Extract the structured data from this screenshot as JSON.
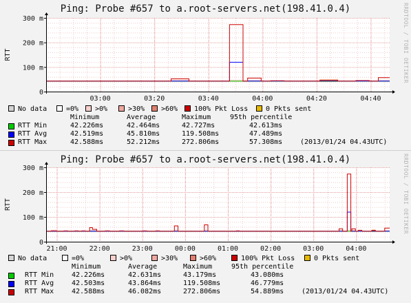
{
  "watermark": "RRDTOOL / TOBI OETIKER",
  "colors": {
    "nodata": "#d4d4d4",
    "p0": "#ffffff",
    "p1": "#f8d0cc",
    "p2": "#f0a8a0",
    "p3": "#e08070",
    "loss": "#cc0000",
    "sent0": "#e6b800",
    "rtt_min": "#00cc00",
    "rtt_avg": "#0000ff",
    "rtt_max": "#cc0000"
  },
  "panels": [
    {
      "title": "Ping: Probe #657 to a.root-servers.net(198.41.0.4)",
      "ylabel": "RTT",
      "legend": [
        {
          "label": "No data",
          "color": "#d4d4d4"
        },
        {
          "label": "=0%",
          "color": "#ffffff"
        },
        {
          "label": ">0%",
          "color": "#f8d0cc"
        },
        {
          "label": ">30%",
          "color": "#f0a8a0"
        },
        {
          "label": ">60%",
          "color": "#e08070"
        },
        {
          "label": "100% Pkt Loss",
          "color": "#cc0000"
        },
        {
          "label": "0 Pkts sent",
          "color": "#e6b800"
        }
      ],
      "stats_header": [
        "Minimum",
        "Average",
        "Maximum",
        "95th percentile"
      ],
      "stats": [
        {
          "name": "RTT Min",
          "color": "#00cc00",
          "min": "42.226ms",
          "avg": "42.464ms",
          "max": "42.727ms",
          "p95": "42.613ms",
          "note": ""
        },
        {
          "name": "RTT Avg",
          "color": "#0000ff",
          "min": "42.519ms",
          "avg": "45.810ms",
          "max": "119.508ms",
          "p95": "47.489ms",
          "note": ""
        },
        {
          "name": "RTT Max",
          "color": "#cc0000",
          "min": "42.588ms",
          "avg": "52.212ms",
          "max": "272.806ms",
          "p95": "57.308ms",
          "note": "(2013/01/24 04.43UTC)"
        }
      ]
    },
    {
      "title": "Ping: Probe #657 to a.root-servers.net(198.41.0.4)",
      "ylabel": "RTT",
      "legend": [
        {
          "label": "No data",
          "color": "#d4d4d4"
        },
        {
          "label": "=0%",
          "color": "#ffffff"
        },
        {
          "label": ">0%",
          "color": "#f8d0cc"
        },
        {
          "label": ">30%",
          "color": "#f0a8a0"
        },
        {
          "label": ">60%",
          "color": "#e08070"
        },
        {
          "label": "100% Pkt Loss",
          "color": "#cc0000"
        },
        {
          "label": "0 Pkts sent",
          "color": "#e6b800"
        }
      ],
      "stats_header": [
        "Minimum",
        "Average",
        "Maximum",
        "95th percentile"
      ],
      "stats": [
        {
          "name": "RTT Min",
          "color": "#00cc00",
          "min": "42.226ms",
          "avg": "42.631ms",
          "max": "43.179ms",
          "p95": "43.080ms",
          "note": ""
        },
        {
          "name": "RTT Avg",
          "color": "#0000ff",
          "min": "42.503ms",
          "avg": "43.864ms",
          "max": "119.508ms",
          "p95": "46.779ms",
          "note": ""
        },
        {
          "name": "RTT Max",
          "color": "#cc0000",
          "min": "42.588ms",
          "avg": "46.082ms",
          "max": "272.806ms",
          "p95": "54.889ms",
          "note": "(2013/01/24 04.43UTC)"
        }
      ]
    }
  ],
  "chart_data": [
    {
      "type": "line",
      "title": "Ping: Probe #657 to a.root-servers.net(198.41.0.4)",
      "ylabel": "RTT",
      "xlabel": "",
      "x_range_min": [
        160,
        287
      ],
      "ylim": [
        0,
        300
      ],
      "yticks": [
        0,
        100,
        200,
        300
      ],
      "ytick_labels": [
        "0",
        "100 m",
        "200 m",
        "300 m"
      ],
      "xticks": [
        180,
        200,
        220,
        240,
        260,
        280
      ],
      "xtick_labels": [
        "03:00",
        "03:20",
        "03:40",
        "04:00",
        "04:20",
        "04:40"
      ],
      "grid": true,
      "step_min": 1.67,
      "baseline_ms": 42.5,
      "series": [
        {
          "name": "RTT Min",
          "color": "#00cc00",
          "points": [
            [
              160,
              42.3
            ],
            [
              287,
              42.3
            ]
          ]
        },
        {
          "name": "RTT Avg",
          "color": "#0000ff",
          "points": [
            [
              160,
              42.5
            ],
            [
              227.8,
              42.5
            ],
            [
              227.8,
              119.5
            ],
            [
              232.8,
              119.5
            ],
            [
              232.8,
              42.5
            ],
            [
              287,
              42.5
            ]
          ]
        },
        {
          "name": "RTT Max",
          "color": "#cc0000",
          "points": [
            [
              160,
              42.6
            ],
            [
              206.2,
              42.6
            ],
            [
              206.2,
              52
            ],
            [
              212.8,
              52
            ],
            [
              212.8,
              42.6
            ],
            [
              227.8,
              42.6
            ],
            [
              227.8,
              272.8
            ],
            [
              232.8,
              272.8
            ],
            [
              232.8,
              42.6
            ],
            [
              234.5,
              42.6
            ],
            [
              234.5,
              55
            ],
            [
              239.5,
              55
            ],
            [
              239.5,
              42.6
            ],
            [
              243,
              42.6
            ],
            [
              243,
              44
            ],
            [
              248,
              44
            ],
            [
              248,
              42.6
            ],
            [
              261.2,
              42.6
            ],
            [
              261.2,
              47
            ],
            [
              267.8,
              47
            ],
            [
              267.8,
              42.6
            ],
            [
              274.5,
              42.6
            ],
            [
              274.5,
              45
            ],
            [
              279.5,
              45
            ],
            [
              279.5,
              42.6
            ],
            [
              282.8,
              42.6
            ],
            [
              282.8,
              57
            ],
            [
              287,
              57
            ]
          ]
        }
      ],
      "loss_markers": [
        [
          206.2,
          212.8,
          "#f8d0cc"
        ],
        [
          227.8,
          232.8,
          "#f8d0cc"
        ],
        [
          234.5,
          239.5,
          "#f8d0cc"
        ],
        [
          261.2,
          267.8,
          "#e6b800"
        ],
        [
          282.8,
          287,
          "#f8d0cc"
        ]
      ]
    },
    {
      "type": "line",
      "title": "Ping: Probe #657 to a.root-servers.net(198.41.0.4)",
      "ylabel": "RTT",
      "xlabel": "",
      "x_range_min": [
        -195,
        287
      ],
      "ylim": [
        0,
        300
      ],
      "yticks": [
        0,
        100,
        200,
        300
      ],
      "ytick_labels": [
        "0",
        "100 m",
        "200 m",
        "300 m"
      ],
      "xticks": [
        -180,
        -120,
        -60,
        0,
        60,
        120,
        180,
        240
      ],
      "xtick_labels": [
        "21:00",
        "22:00",
        "23:00",
        "00:00",
        "01:00",
        "02:00",
        "03:00",
        "04:00"
      ],
      "grid": true,
      "step_min": 5,
      "baseline_ms": 42.5,
      "series": [
        {
          "name": "RTT Min",
          "color": "#00cc00",
          "points": [
            [
              -195,
              42.3
            ],
            [
              287,
              42.3
            ]
          ]
        },
        {
          "name": "RTT Avg",
          "color": "#0000ff",
          "points": [
            [
              -195,
              42.5
            ],
            [
              227.5,
              42.5
            ],
            [
              227.5,
              119.5
            ],
            [
              232.5,
              119.5
            ],
            [
              232.5,
              42.5
            ],
            [
              287,
              42.5
            ]
          ]
        },
        {
          "name": "RTT Max",
          "color": "#cc0000",
          "points": [
            [
              -195,
              42.6
            ],
            [
              -188,
              42.6
            ],
            [
              -188,
              44
            ],
            [
              -180,
              44
            ],
            [
              -180,
              42.6
            ],
            [
              -170,
              42.6
            ],
            [
              -170,
              44
            ],
            [
              -165,
              44
            ],
            [
              -165,
              42.6
            ],
            [
              -155,
              42.6
            ],
            [
              -155,
              44
            ],
            [
              -150,
              44
            ],
            [
              -150,
              42.6
            ],
            [
              -145,
              42.6
            ],
            [
              -145,
              44
            ],
            [
              -140,
              44
            ],
            [
              -140,
              42.6
            ],
            [
              -134,
              42.6
            ],
            [
              -134,
              57
            ],
            [
              -130,
              57
            ],
            [
              -130,
              50
            ],
            [
              -124,
              50
            ],
            [
              -124,
              42.6
            ],
            [
              -112,
              42.6
            ],
            [
              -112,
              44
            ],
            [
              -106,
              44
            ],
            [
              -106,
              42.6
            ],
            [
              -92,
              42.6
            ],
            [
              -92,
              44
            ],
            [
              -86,
              44
            ],
            [
              -86,
              42.6
            ],
            [
              -60,
              42.6
            ],
            [
              -60,
              44
            ],
            [
              -54,
              44
            ],
            [
              -54,
              42.6
            ],
            [
              -41,
              42.6
            ],
            [
              -41,
              44
            ],
            [
              -36,
              44
            ],
            [
              -36,
              42.6
            ],
            [
              -15,
              42.6
            ],
            [
              -15,
              64
            ],
            [
              -10,
              64
            ],
            [
              -10,
              42.6
            ],
            [
              27,
              42.6
            ],
            [
              27,
              68
            ],
            [
              32,
              68
            ],
            [
              32,
              42.6
            ],
            [
              72,
              42.6
            ],
            [
              72,
              44
            ],
            [
              76,
              44
            ],
            [
              76,
              42.6
            ],
            [
              216,
              42.6
            ],
            [
              216,
              52
            ],
            [
              221,
              52
            ],
            [
              221,
              42.6
            ],
            [
              227.5,
              42.6
            ],
            [
              227.5,
              272.8
            ],
            [
              232.5,
              272.8
            ],
            [
              232.5,
              42.6
            ],
            [
              234,
              42.6
            ],
            [
              234,
              52
            ],
            [
              239,
              52
            ],
            [
              239,
              42.6
            ],
            [
              243,
              42.6
            ],
            [
              243,
              46
            ],
            [
              248,
              46
            ],
            [
              248,
              42.6
            ],
            [
              262,
              42.6
            ],
            [
              262,
              46
            ],
            [
              267,
              46
            ],
            [
              267,
              42.6
            ],
            [
              280,
              42.6
            ],
            [
              280,
              55
            ],
            [
              287,
              55
            ]
          ]
        }
      ],
      "loss_markers": [
        [
          -188,
          -180,
          "#f8d0cc"
        ],
        [
          -134,
          -124,
          "#f8d0cc"
        ],
        [
          -15,
          -10,
          "#f8d0cc"
        ],
        [
          27,
          32,
          "#f8d0cc"
        ],
        [
          216,
          221,
          "#f8d0cc"
        ],
        [
          227.5,
          232.5,
          "#f8d0cc"
        ],
        [
          234,
          239,
          "#f8d0cc"
        ],
        [
          262,
          267,
          "#e6b800"
        ],
        [
          280,
          287,
          "#f8d0cc"
        ]
      ]
    }
  ]
}
